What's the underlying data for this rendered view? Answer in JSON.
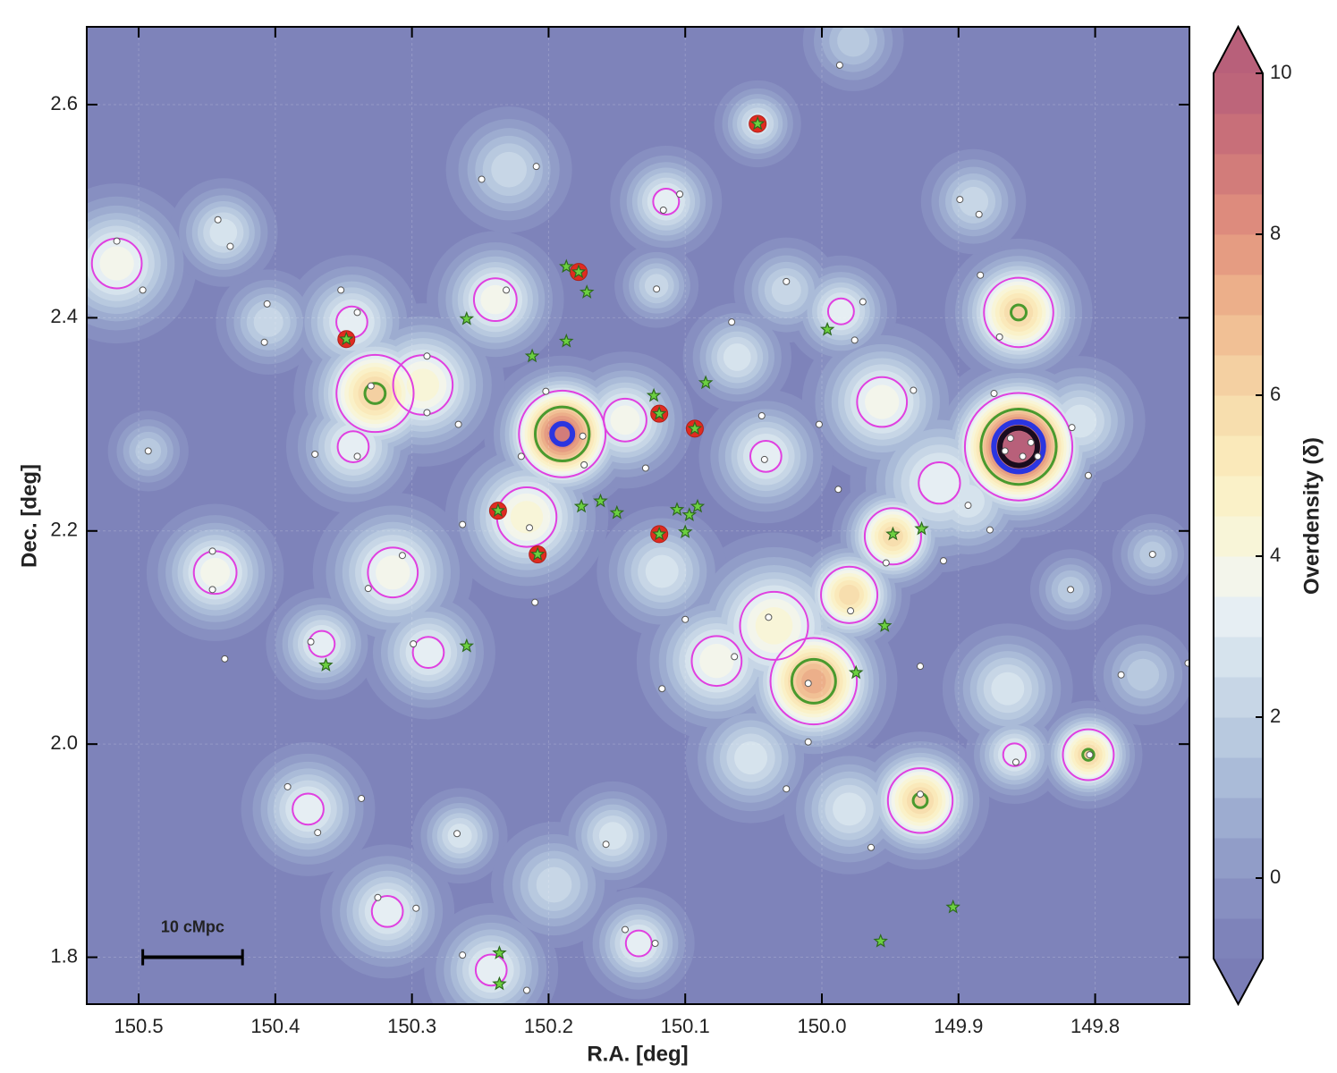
{
  "chart_data": {
    "type": "density_map",
    "xlabel": "R.A. [deg]",
    "ylabel": "Dec. [deg]",
    "colorbar_label": "Overdensity (δ)",
    "xlim": [
      150.538,
      149.731
    ],
    "ylim": [
      1.756,
      2.673
    ],
    "xticks": [
      150.5,
      150.4,
      150.3,
      150.2,
      150.1,
      {
        "value": 150.0,
        "label": "150.0"
      },
      149.9,
      149.8
    ],
    "yticks": [
      1.8,
      {
        "value": 2.0,
        "label": "2.0"
      },
      2.2,
      2.4,
      2.6
    ],
    "clim": [
      -1,
      10
    ],
    "cticks": [
      0,
      2,
      4,
      6,
      8,
      10
    ],
    "level_step": 0.5,
    "grid": true,
    "colormap": [
      {
        "value": -1,
        "color": "#7a7db6"
      },
      {
        "value": 0,
        "color": "#8b95c4"
      },
      {
        "value": 1,
        "color": "#a3b4d4"
      },
      {
        "value": 2,
        "color": "#bfd0e2"
      },
      {
        "value": 3,
        "color": "#dde9f0"
      },
      {
        "value": 3.5,
        "color": "#eef3f5"
      },
      {
        "value": 4,
        "color": "#f7f7e0"
      },
      {
        "value": 5,
        "color": "#fbefc0"
      },
      {
        "value": 6,
        "color": "#f5d8a8"
      },
      {
        "value": 7,
        "color": "#efb88e"
      },
      {
        "value": 8,
        "color": "#e2937e"
      },
      {
        "value": 9,
        "color": "#cd7478"
      },
      {
        "value": 10,
        "color": "#b8607a"
      }
    ],
    "contours": {
      "levels": [
        3,
        6,
        8.5,
        9.5
      ],
      "colors": [
        "#e040e0",
        "#4a9a2e",
        "#2a35e0",
        "#1a0c1e"
      ],
      "widths": [
        2,
        3,
        6,
        6
      ]
    },
    "peaks": {
      "x": [
        149.856,
        150.19,
        150.006,
        150.327,
        149.856,
        149.928,
        149.805,
        149.948,
        149.98,
        150.035,
        150.077,
        149.914,
        149.956,
        150.041,
        150.144,
        150.216,
        150.292,
        150.239,
        150.344,
        150.343,
        150.314,
        150.288,
        150.366,
        150.444,
        150.516,
        150.438,
        150.376,
        150.318,
        150.242,
        150.265,
        150.153,
        150.134,
        150.114,
        150.229,
        150.047,
        149.986,
        149.889,
        149.859,
        149.758,
        149.818,
        150.117,
        149.765,
        149.864,
        150.052,
        149.98,
        150.121,
        150.026,
        150.062,
        150.405,
        150.493,
        149.977,
        150.196,
        149.811,
        149.893
      ],
      "y": [
        2.279,
        2.291,
        2.059,
        2.329,
        2.405,
        1.947,
        1.99,
        2.195,
        2.14,
        2.111,
        2.078,
        2.245,
        2.321,
        2.27,
        2.304,
        2.213,
        2.337,
        2.417,
        2.396,
        2.279,
        2.161,
        2.086,
        2.094,
        2.161,
        2.451,
        2.48,
        1.939,
        1.843,
        1.788,
        1.914,
        1.914,
        1.813,
        2.509,
        2.539,
        2.582,
        2.406,
        2.509,
        1.99,
        2.178,
        2.145,
        2.162,
        2.065,
        2.052,
        1.987,
        1.939,
        2.43,
        2.426,
        2.363,
        2.396,
        2.275,
        2.66,
        1.868,
        2.303,
        2.228
      ],
      "values": [
        11,
        9,
        7.5,
        6.3,
        6.2,
        6.2,
        6.2,
        6,
        6,
        4.5,
        4,
        3.5,
        4,
        3.5,
        4,
        4.5,
        4.5,
        4,
        3.5,
        3.5,
        4,
        3.5,
        3.5,
        4,
        4,
        3,
        3.5,
        3.5,
        3.5,
        3,
        3,
        3.5,
        3.5,
        2.5,
        3,
        3.5,
        2.5,
        3.5,
        2,
        2,
        3,
        2,
        3,
        3,
        3,
        2.5,
        2.5,
        3,
        2.5,
        2,
        2,
        2.5,
        3,
        3
      ],
      "widths": [
        0.034,
        0.03,
        0.033,
        0.033,
        0.03,
        0.028,
        0.022,
        0.025,
        0.025,
        0.04,
        0.035,
        0.04,
        0.035,
        0.03,
        0.03,
        0.035,
        0.035,
        0.03,
        0.03,
        0.03,
        0.035,
        0.03,
        0.025,
        0.03,
        0.035,
        0.025,
        0.03,
        0.03,
        0.03,
        0.022,
        0.025,
        0.025,
        0.025,
        0.03,
        0.02,
        0.025,
        0.025,
        0.022,
        0.02,
        0.02,
        0.03,
        0.025,
        0.03,
        0.03,
        0.03,
        0.02,
        0.025,
        0.025,
        0.025,
        0.02,
        0.025,
        0.03,
        0.03,
        0.03
      ]
    },
    "series": [
      {
        "marker": "circle",
        "color": "#ffffff",
        "x": [
          150.497,
          150.516,
          150.493,
          150.442,
          150.433,
          150.406,
          150.408,
          150.352,
          150.34,
          150.33,
          150.34,
          150.371,
          150.289,
          150.289,
          150.266,
          150.231,
          150.249,
          150.209,
          150.116,
          150.104,
          150.121,
          150.202,
          150.22,
          150.174,
          150.175,
          150.129,
          150.263,
          150.214,
          150.21,
          150.026,
          150.066,
          149.97,
          149.976,
          150.044,
          150.002,
          149.988,
          150.042,
          149.884,
          149.87,
          149.899,
          149.885,
          149.862,
          149.853,
          149.817,
          149.805,
          149.877,
          149.933,
          149.758,
          149.818,
          149.781,
          149.858,
          149.804,
          149.928,
          149.964,
          150.026,
          150.01,
          150.01,
          150.039,
          149.979,
          149.953,
          149.911,
          149.928,
          150.064,
          150.1,
          150.117,
          150.307,
          150.332,
          150.299,
          150.446,
          150.446,
          150.437,
          150.374,
          150.391,
          150.369,
          150.337,
          150.267,
          150.325,
          150.297,
          150.263,
          150.216,
          150.158,
          150.144,
          150.122,
          149.987,
          149.732,
          149.874,
          149.893,
          149.847,
          149.866,
          149.842
        ],
        "y": [
          2.426,
          2.472,
          2.275,
          2.492,
          2.467,
          2.413,
          2.377,
          2.426,
          2.405,
          2.336,
          2.27,
          2.272,
          2.364,
          2.311,
          2.3,
          2.426,
          2.53,
          2.542,
          2.501,
          2.516,
          2.427,
          2.331,
          2.27,
          2.262,
          2.289,
          2.259,
          2.206,
          2.203,
          2.133,
          2.434,
          2.396,
          2.415,
          2.379,
          2.308,
          2.3,
          2.239,
          2.267,
          2.44,
          2.382,
          2.511,
          2.497,
          2.287,
          2.27,
          2.297,
          2.252,
          2.201,
          2.332,
          2.178,
          2.145,
          2.065,
          1.983,
          1.99,
          1.953,
          1.903,
          1.958,
          2.002,
          2.057,
          2.119,
          2.125,
          2.17,
          2.172,
          2.073,
          2.082,
          2.117,
          2.052,
          2.177,
          2.146,
          2.094,
          2.181,
          2.145,
          2.08,
          2.096,
          1.96,
          1.917,
          1.949,
          1.916,
          1.856,
          1.846,
          1.802,
          1.769,
          1.906,
          1.826,
          1.813,
          2.637,
          2.076,
          2.329,
          2.224,
          2.283,
          2.275,
          2.27
        ]
      },
      {
        "marker": "ring",
        "color": "#e02b20",
        "x": [
          150.047,
          150.178,
          150.348,
          150.119,
          150.093,
          150.237,
          150.119,
          150.208
        ],
        "y": [
          2.582,
          2.443,
          2.38,
          2.31,
          2.296,
          2.219,
          2.197,
          2.178
        ]
      },
      {
        "marker": "star",
        "color": "#6cd040",
        "x": [
          150.047,
          150.178,
          150.187,
          150.172,
          150.348,
          150.26,
          150.187,
          150.212,
          150.123,
          150.085,
          150.119,
          150.093,
          150.237,
          150.176,
          150.162,
          150.15,
          150.106,
          150.097,
          150.091,
          150.1,
          150.119,
          150.208,
          149.996,
          149.927,
          149.948,
          149.954,
          149.975,
          150.26,
          150.363,
          149.904,
          149.957,
          150.236,
          150.236
        ],
        "y": [
          2.582,
          2.443,
          2.448,
          2.424,
          2.38,
          2.399,
          2.378,
          2.364,
          2.327,
          2.339,
          2.31,
          2.296,
          2.219,
          2.223,
          2.228,
          2.217,
          2.22,
          2.215,
          2.223,
          2.199,
          2.197,
          2.178,
          2.389,
          2.202,
          2.197,
          2.111,
          2.067,
          2.092,
          2.074,
          1.847,
          1.815,
          1.804,
          1.775
        ]
      }
    ],
    "scale_bar": {
      "label": "10 cMpc",
      "x": [
        150.497,
        150.424
      ],
      "y": 1.8
    }
  }
}
